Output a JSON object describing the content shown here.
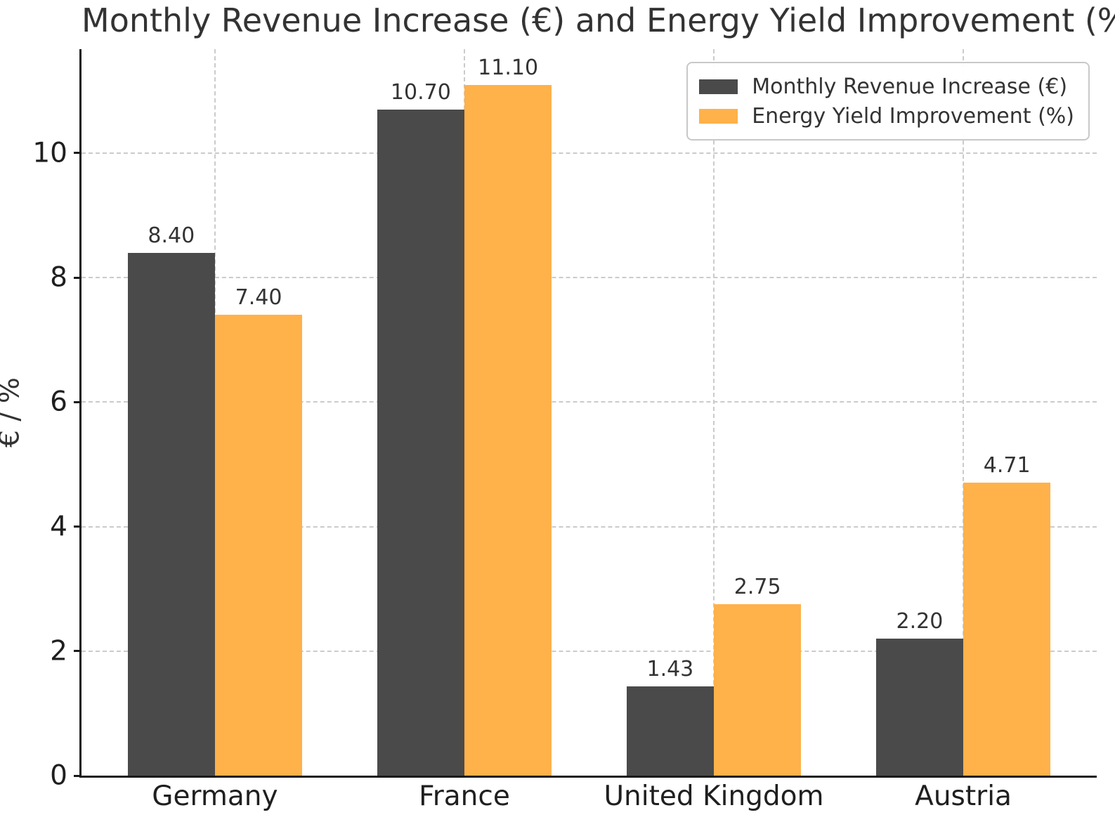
{
  "figure": {
    "background": "#FFFFFF",
    "text_color": "#333333",
    "tick_color": "#1F1F1F",
    "spine_color": "#1A1A1A",
    "grid_color": "#CBCBCB",
    "legend_border_color": "#C8C8C8"
  },
  "chart_data": {
    "type": "bar",
    "title": "Monthly Revenue Increase (€) and Energy Yield Improvement (%)",
    "xlabel": "",
    "ylabel": "€ / %",
    "categories": [
      "Germany",
      "France",
      "United Kingdom",
      "Austria"
    ],
    "series": [
      {
        "name": "Monthly Revenue Increase (€)",
        "color": "#4A4A4A",
        "values": [
          8.4,
          10.7,
          1.43,
          2.2
        ]
      },
      {
        "name": "Energy Yield Improvement (%)",
        "color": "#FFB14A",
        "values": [
          7.4,
          11.1,
          2.75,
          4.71
        ]
      }
    ],
    "value_labels": [
      [
        "8.40",
        "10.70",
        "1.43",
        "2.20"
      ],
      [
        "7.40",
        "11.10",
        "2.75",
        "4.71"
      ]
    ],
    "yticks": [
      0,
      2,
      4,
      6,
      8,
      10
    ],
    "ylim": [
      0,
      11.67
    ],
    "xlim": [
      -0.535,
      3.535
    ],
    "bar_width": 0.35,
    "grid": "both, dashed",
    "legend_position": "upper right"
  }
}
